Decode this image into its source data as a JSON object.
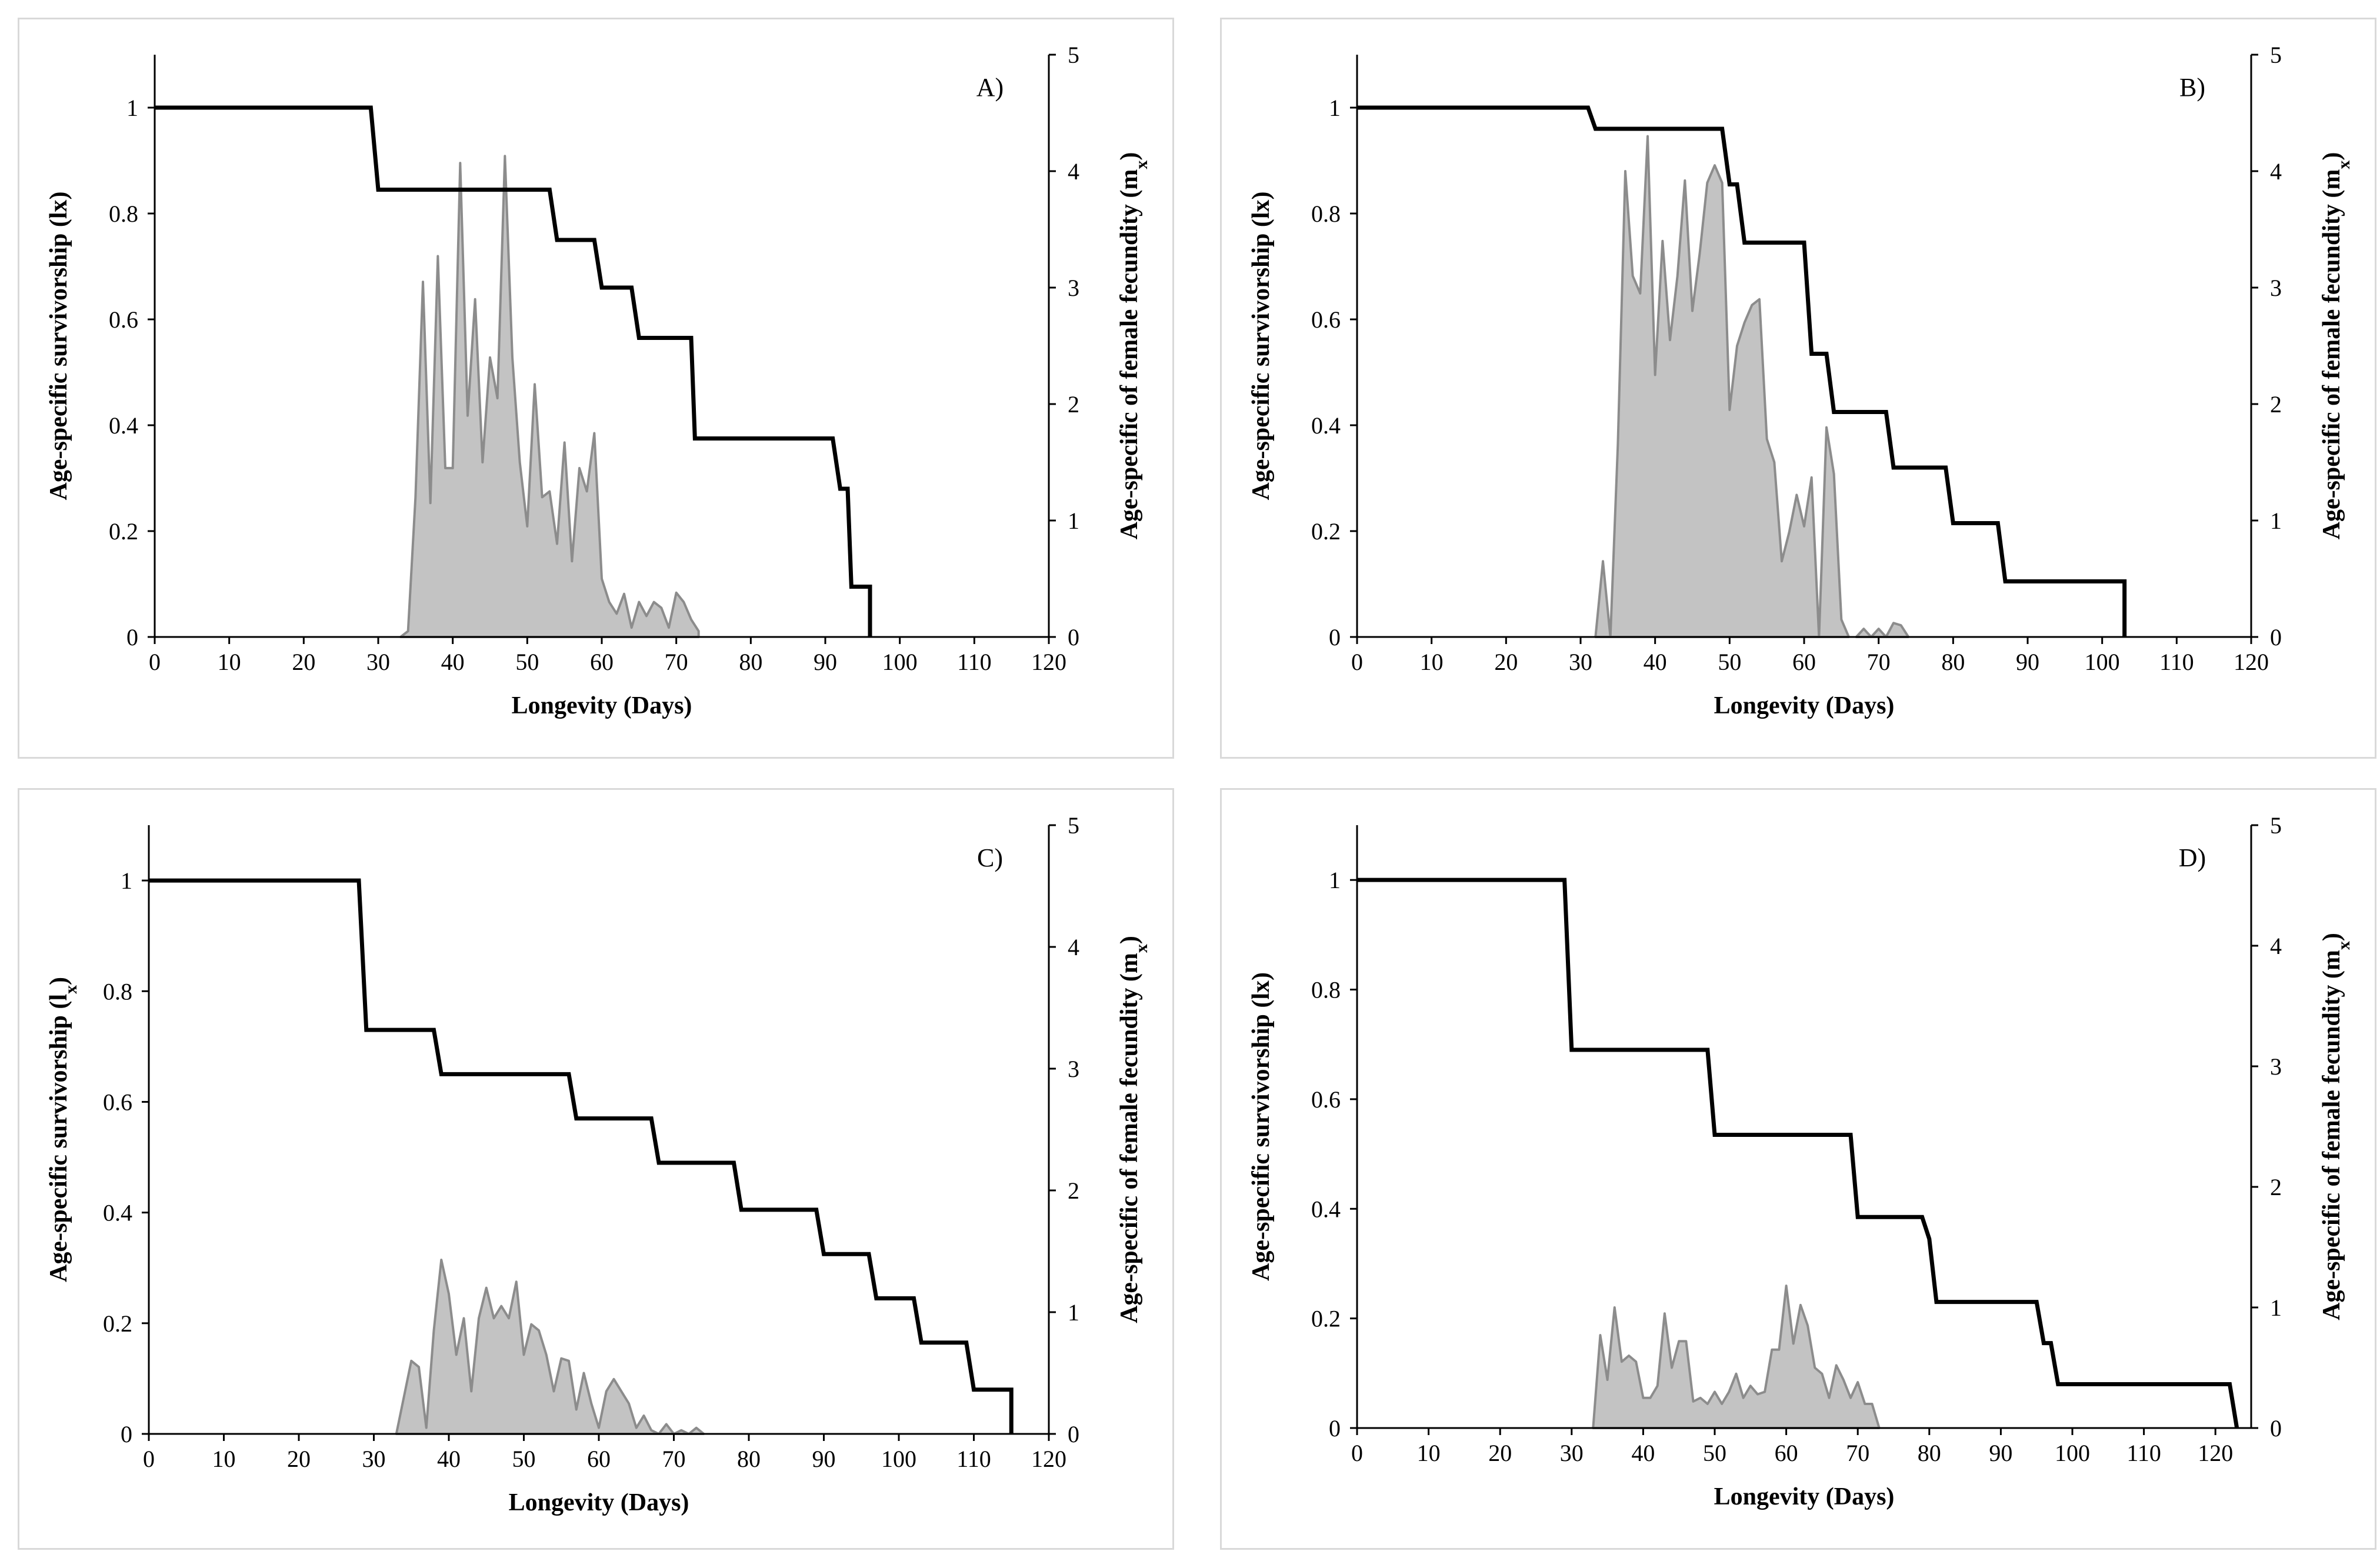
{
  "chart_data": [
    {
      "type": "line",
      "panel_label": "A)",
      "xlabel": "Longevity (Days)",
      "ylabel": "Age-specific survivorship  (lx)",
      "y2label": "Age-specific of female fecundity (m",
      "y2label_sub": "x",
      "y2label_end": ")",
      "xlim": [
        0,
        120
      ],
      "ylim": [
        0,
        1.1
      ],
      "y2lim": [
        0,
        5
      ],
      "x_ticks": [
        0,
        10,
        20,
        30,
        40,
        50,
        60,
        70,
        80,
        90,
        100,
        110,
        120
      ],
      "y_ticks": [
        0,
        0.2,
        0.4,
        0.6,
        0.8,
        1
      ],
      "y_tick_labels": [
        "0",
        "0.2",
        "0.4",
        "0.6",
        "0.8",
        "1"
      ],
      "y2_ticks": [
        0,
        1,
        2,
        3,
        4,
        5
      ],
      "series": [
        {
          "name": "lx",
          "type": "step",
          "x": [
            0,
            29,
            30,
            53,
            54,
            59,
            60,
            64,
            65,
            72,
            72.5,
            91,
            92,
            93,
            93.5,
            96,
            96
          ],
          "y": [
            1,
            1,
            0.845,
            0.845,
            0.75,
            0.75,
            0.66,
            0.66,
            0.565,
            0.565,
            0.375,
            0.375,
            0.28,
            0.28,
            0.095,
            0.095,
            0
          ]
        },
        {
          "name": "mx",
          "type": "area",
          "axis": "y2",
          "x": [
            33,
            34,
            35,
            36,
            37,
            38,
            39,
            40,
            41,
            42,
            43,
            44,
            45,
            46,
            47,
            48,
            49,
            50,
            51,
            52,
            53,
            54,
            55,
            56,
            57,
            58,
            59,
            60,
            61,
            62,
            63,
            64,
            65,
            66,
            67,
            68,
            69,
            70,
            71,
            72,
            73
          ],
          "y": [
            0,
            0.05,
            1.2,
            3.05,
            1.15,
            3.27,
            1.45,
            1.45,
            4.07,
            1.9,
            2.9,
            1.5,
            2.4,
            2.05,
            4.13,
            2.4,
            1.5,
            0.95,
            2.17,
            1.2,
            1.25,
            0.8,
            1.67,
            0.65,
            1.45,
            1.25,
            1.75,
            0.5,
            0.3,
            0.2,
            0.37,
            0.08,
            0.3,
            0.18,
            0.3,
            0.25,
            0.08,
            0.38,
            0.3,
            0.15,
            0.05
          ]
        }
      ]
    },
    {
      "type": "line",
      "panel_label": "B)",
      "xlabel": "Longevity (Days)",
      "ylabel": "Age-specific survivorship  (lx)",
      "y2label": "Age-specific of female fecundity (m",
      "y2label_sub": "x",
      "y2label_end": ")",
      "xlim": [
        0,
        120
      ],
      "ylim": [
        0,
        1.1
      ],
      "y2lim": [
        0,
        5
      ],
      "x_ticks": [
        0,
        10,
        20,
        30,
        40,
        50,
        60,
        70,
        80,
        90,
        100,
        110,
        120
      ],
      "y_ticks": [
        0,
        0.2,
        0.4,
        0.6,
        0.8,
        1
      ],
      "y_tick_labels": [
        "0",
        "0.2",
        "0.4",
        "0.6",
        "0.8",
        "1"
      ],
      "y2_ticks": [
        0,
        1,
        2,
        3,
        4,
        5
      ],
      "series": [
        {
          "name": "lx",
          "type": "step",
          "x": [
            0,
            31,
            32,
            49,
            50,
            51,
            52,
            60,
            61,
            63,
            64,
            71,
            72,
            79,
            80,
            86,
            87,
            103,
            103
          ],
          "y": [
            1,
            1,
            0.96,
            0.96,
            0.855,
            0.855,
            0.745,
            0.745,
            0.535,
            0.535,
            0.425,
            0.425,
            0.32,
            0.32,
            0.215,
            0.215,
            0.105,
            0.105,
            0
          ]
        },
        {
          "name": "mx",
          "type": "area",
          "axis": "y2",
          "x": [
            32,
            33,
            34,
            35,
            36,
            37,
            38,
            39,
            40,
            41,
            42,
            43,
            44,
            45,
            46,
            47,
            48,
            49,
            50,
            51,
            52,
            53,
            54,
            55,
            56,
            57,
            58,
            59,
            60,
            61,
            62,
            63,
            64,
            65,
            66
          ],
          "y": [
            0,
            0.65,
            0,
            1.65,
            4,
            3.1,
            2.95,
            4.3,
            2.25,
            3.4,
            2.55,
            3.1,
            3.92,
            2.8,
            3.3,
            3.9,
            4.05,
            3.9,
            1.95,
            2.5,
            2.7,
            2.85,
            2.9,
            1.7,
            1.5,
            0.65,
            0.9,
            1.22,
            0.95,
            1.37,
            0,
            1.8,
            1.4,
            0.15,
            0
          ]
        },
        {
          "name": "mx-tail",
          "type": "area",
          "axis": "y2",
          "x": [
            67,
            68,
            69,
            70,
            71,
            72,
            73,
            74
          ],
          "y": [
            0,
            0.07,
            0,
            0.07,
            0,
            0.12,
            0.1,
            0
          ]
        }
      ]
    },
    {
      "type": "line",
      "panel_label": "C)",
      "xlabel": "Longevity (Days)",
      "ylabel": "Age-specific survivorship  (l",
      "ylabel_sub": "x",
      "ylabel_end": ")",
      "y2label": "Age-specific of female fecundity (m",
      "y2label_sub": "x",
      "y2label_end": ")",
      "xlim": [
        0,
        120
      ],
      "ylim": [
        0,
        1.1
      ],
      "y2lim": [
        0,
        5
      ],
      "x_ticks": [
        0,
        10,
        20,
        30,
        40,
        50,
        60,
        70,
        80,
        90,
        100,
        110,
        120
      ],
      "y_ticks": [
        0,
        0.2,
        0.4,
        0.6,
        0.8,
        1
      ],
      "y_tick_labels": [
        "0",
        "0.2",
        "0.4",
        "0.6",
        "0.8",
        "1"
      ],
      "y2_ticks": [
        0,
        1,
        2,
        3,
        4,
        5
      ],
      "series": [
        {
          "name": "lx",
          "type": "step",
          "x": [
            0,
            28,
            29,
            38,
            39,
            56,
            57,
            67,
            68,
            78,
            79,
            89,
            90,
            96,
            97,
            102,
            103,
            109,
            110,
            115,
            115
          ],
          "y": [
            1,
            1,
            0.73,
            0.73,
            0.65,
            0.65,
            0.57,
            0.57,
            0.49,
            0.49,
            0.405,
            0.405,
            0.325,
            0.325,
            0.245,
            0.245,
            0.165,
            0.165,
            0.08,
            0.08,
            0
          ]
        },
        {
          "name": "mx",
          "type": "area",
          "axis": "y2",
          "x": [
            33,
            34,
            35,
            36,
            37,
            38,
            39,
            40,
            41,
            42,
            43,
            44,
            45,
            46,
            47,
            48,
            49,
            50,
            51,
            52,
            53,
            54,
            55,
            56,
            57,
            58,
            59,
            60,
            61,
            62,
            63,
            64,
            65,
            66,
            67,
            68,
            69,
            70,
            71,
            72,
            73,
            74
          ],
          "y": [
            0,
            0.3,
            0.6,
            0.55,
            0.05,
            0.85,
            1.43,
            1.15,
            0.65,
            0.95,
            0.35,
            0.95,
            1.2,
            0.95,
            1.05,
            0.95,
            1.25,
            0.65,
            0.9,
            0.85,
            0.65,
            0.35,
            0.62,
            0.6,
            0.2,
            0.5,
            0.25,
            0.05,
            0.35,
            0.45,
            0.35,
            0.25,
            0.05,
            0.15,
            0.03,
            0,
            0.08,
            0,
            0.03,
            0,
            0.05,
            0
          ]
        }
      ]
    },
    {
      "type": "line",
      "panel_label": "D)",
      "xlabel": "Longevity (Days)",
      "ylabel": "Age-specific survivorship  (lx)",
      "y2label": "Age-specific of female fecundity (m",
      "y2label_sub": "x",
      "y2label_end": ")",
      "xlim": [
        0,
        125
      ],
      "ylim": [
        0,
        1.1
      ],
      "y2lim": [
        0,
        5
      ],
      "x_ticks": [
        0,
        10,
        20,
        30,
        40,
        50,
        60,
        70,
        80,
        90,
        100,
        110,
        120
      ],
      "y_ticks": [
        0,
        0.2,
        0.4,
        0.6,
        0.8,
        1
      ],
      "y_tick_labels": [
        "0",
        "0.2",
        "0.4",
        "0.6",
        "0.8",
        "1"
      ],
      "y2_ticks": [
        0,
        1,
        2,
        3,
        4,
        5
      ],
      "series": [
        {
          "name": "lx",
          "type": "step",
          "x": [
            0,
            29,
            30,
            49,
            50,
            69,
            70,
            79,
            80,
            81,
            82,
            95,
            96,
            97,
            98,
            99,
            100,
            122,
            123
          ],
          "y": [
            1,
            1,
            0.69,
            0.69,
            0.535,
            0.535,
            0.385,
            0.385,
            0.345,
            0.23,
            0.23,
            0.23,
            0.155,
            0.155,
            0.08,
            0.08,
            0.08,
            0.08,
            0
          ]
        },
        {
          "name": "mx",
          "type": "area",
          "axis": "y2",
          "x": [
            33,
            34,
            35,
            36,
            37,
            38,
            39,
            40,
            41,
            42,
            43,
            44,
            45,
            46,
            47,
            48,
            49,
            50,
            51,
            52,
            53,
            54,
            55,
            56,
            57,
            58,
            59,
            60,
            61,
            62,
            63,
            64,
            65,
            66,
            67,
            68,
            69,
            70,
            71,
            72,
            73
          ],
          "y": [
            0,
            0.77,
            0.4,
            1.0,
            0.55,
            0.6,
            0.55,
            0.25,
            0.25,
            0.35,
            0.95,
            0.5,
            0.72,
            0.72,
            0.22,
            0.25,
            0.2,
            0.3,
            0.2,
            0.3,
            0.45,
            0.25,
            0.35,
            0.28,
            0.3,
            0.65,
            0.65,
            1.18,
            0.7,
            1.02,
            0.85,
            0.5,
            0.45,
            0.25,
            0.52,
            0.4,
            0.25,
            0.38,
            0.2,
            0.2,
            0
          ]
        }
      ]
    }
  ]
}
